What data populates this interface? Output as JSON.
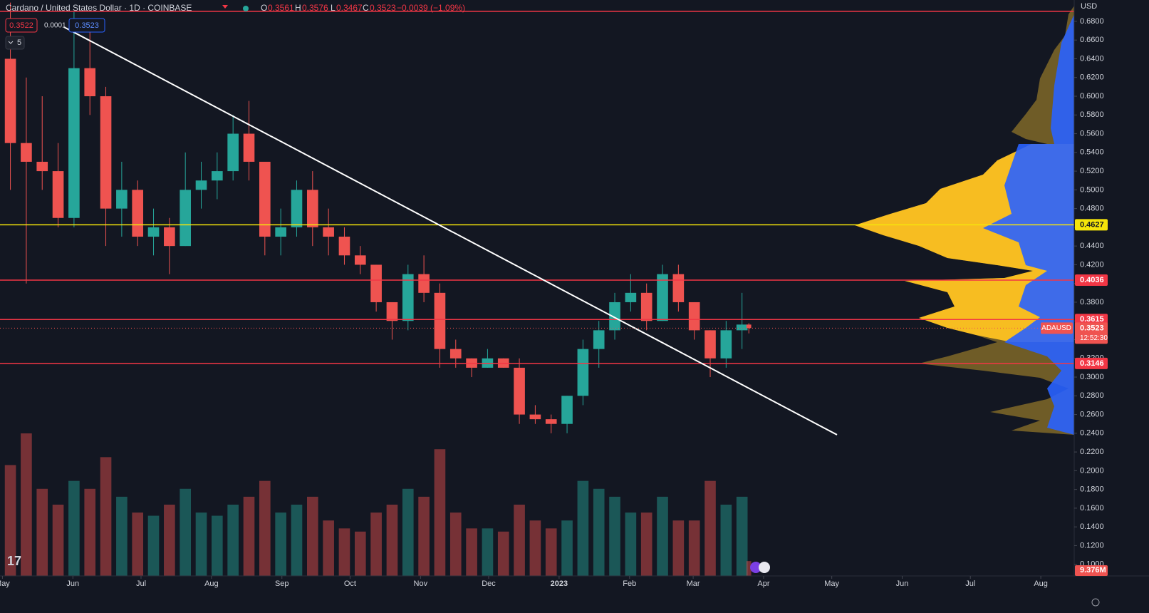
{
  "chart_data": {
    "type": "candlestick",
    "title": "Cardano / United States Dollar · 1D · COINBASE",
    "change": "−0.0039 (−1.09%)",
    "sell": 0.3522,
    "spread": 0.0001,
    "buy": 0.3523,
    "indicators": 5,
    "currency": "USD",
    "symbol": "ADAUSD",
    "countdown": "12:52:30",
    "up_color": "#26a69a",
    "down_color": "#ef5350",
    "x": [
      3.5,
      10.5,
      17.5,
      24.5,
      31.5,
      38.5,
      45.5,
      52.5,
      59.5,
      66.5,
      73.5,
      80.5,
      87.5,
      94.5,
      101.5,
      108.5,
      115.5,
      122.5,
      129.5,
      136.5,
      143.5,
      150.5,
      157.5,
      164.5,
      171.5,
      178.5,
      185.5,
      192.5,
      199.5,
      206.5,
      213.5,
      220.5,
      227.5,
      234.5,
      241.5,
      248.5,
      255.5,
      262.5,
      269.5,
      276.5,
      283.5,
      290.5,
      297.5,
      304.5,
      311.5,
      318.5,
      325.5,
      328.5
    ],
    "open": [
      0.64,
      0.55,
      0.53,
      0.52,
      0.47,
      0.63,
      0.6,
      0.48,
      0.5,
      0.45,
      0.46,
      0.44,
      0.5,
      0.51,
      0.52,
      0.56,
      0.53,
      0.45,
      0.46,
      0.5,
      0.46,
      0.45,
      0.43,
      0.42,
      0.38,
      0.36,
      0.41,
      0.39,
      0.33,
      0.32,
      0.31,
      0.32,
      0.31,
      0.26,
      0.255,
      0.25,
      0.28,
      0.33,
      0.35,
      0.38,
      0.39,
      0.36,
      0.41,
      0.38,
      0.35,
      0.32,
      0.35,
      0.3561
    ],
    "high": [
      0.7,
      0.62,
      0.6,
      0.55,
      0.69,
      0.67,
      0.61,
      0.53,
      0.51,
      0.48,
      0.47,
      0.54,
      0.53,
      0.54,
      0.58,
      0.595,
      0.53,
      0.48,
      0.51,
      0.52,
      0.48,
      0.46,
      0.44,
      0.42,
      0.38,
      0.42,
      0.43,
      0.4,
      0.34,
      0.32,
      0.33,
      0.32,
      0.32,
      0.27,
      0.26,
      0.28,
      0.34,
      0.36,
      0.39,
      0.41,
      0.4,
      0.42,
      0.42,
      0.38,
      0.35,
      0.36,
      0.39,
      0.3576
    ],
    "low": [
      0.5,
      0.4,
      0.5,
      0.46,
      0.46,
      0.58,
      0.44,
      0.45,
      0.44,
      0.43,
      0.41,
      0.44,
      0.48,
      0.49,
      0.51,
      0.51,
      0.43,
      0.43,
      0.45,
      0.44,
      0.43,
      0.42,
      0.41,
      0.37,
      0.34,
      0.35,
      0.38,
      0.31,
      0.31,
      0.3,
      0.31,
      0.31,
      0.25,
      0.25,
      0.24,
      0.24,
      0.27,
      0.31,
      0.34,
      0.37,
      0.35,
      0.36,
      0.37,
      0.34,
      0.3,
      0.31,
      0.33,
      0.3467
    ],
    "close": [
      0.55,
      0.53,
      0.52,
      0.47,
      0.63,
      0.6,
      0.48,
      0.5,
      0.45,
      0.46,
      0.44,
      0.5,
      0.51,
      0.52,
      0.56,
      0.53,
      0.45,
      0.46,
      0.5,
      0.46,
      0.45,
      0.43,
      0.42,
      0.38,
      0.36,
      0.41,
      0.39,
      0.33,
      0.32,
      0.31,
      0.32,
      0.31,
      0.26,
      0.255,
      0.25,
      0.28,
      0.33,
      0.35,
      0.38,
      0.39,
      0.36,
      0.41,
      0.38,
      0.35,
      0.32,
      0.35,
      0.3561,
      0.3523
    ],
    "volume": [
      70,
      90,
      55,
      45,
      60,
      55,
      75,
      50,
      40,
      38,
      45,
      55,
      40,
      38,
      45,
      50,
      60,
      40,
      45,
      50,
      35,
      30,
      28,
      40,
      45,
      55,
      50,
      80,
      40,
      30,
      30,
      28,
      45,
      35,
      30,
      35,
      60,
      55,
      50,
      40,
      40,
      50,
      35,
      35,
      60,
      45,
      50,
      9.376
    ],
    "last_volume_label": "9.376M",
    "xlim": [
      -1.07,
      471.7
    ],
    "xticks": [
      {
        "value": 0,
        "label": "May"
      },
      {
        "value": 31,
        "label": "Jun"
      },
      {
        "value": 61,
        "label": "Jul"
      },
      {
        "value": 92,
        "label": "Aug"
      },
      {
        "value": 123,
        "label": "Sep"
      },
      {
        "value": 153,
        "label": "Oct"
      },
      {
        "value": 184,
        "label": "Nov"
      },
      {
        "value": 214,
        "label": "Dec"
      },
      {
        "value": 245,
        "label": "2023"
      },
      {
        "value": 276,
        "label": "Feb"
      },
      {
        "value": 304,
        "label": "Mar"
      },
      {
        "value": 335,
        "label": "Apr"
      },
      {
        "value": 365,
        "label": "May"
      },
      {
        "value": 396,
        "label": "Jun"
      },
      {
        "value": 426,
        "label": "Jul"
      },
      {
        "value": 457,
        "label": "Aug"
      }
    ],
    "ylim": [
      0.0876,
      0.7028
    ],
    "yticks": [
      {
        "value": 0.1,
        "label": "0.1000"
      },
      {
        "value": 0.12,
        "label": "0.1200"
      },
      {
        "value": 0.14,
        "label": "0.1400"
      },
      {
        "value": 0.16,
        "label": "0.1600"
      },
      {
        "value": 0.18,
        "label": "0.1800"
      },
      {
        "value": 0.2,
        "label": "0.2000"
      },
      {
        "value": 0.22,
        "label": "0.2200"
      },
      {
        "value": 0.24,
        "label": "0.2400"
      },
      {
        "value": 0.26,
        "label": "0.2600"
      },
      {
        "value": 0.28,
        "label": "0.2800"
      },
      {
        "value": 0.3,
        "label": "0.3000"
      },
      {
        "value": 0.32,
        "label": "0.3200"
      },
      {
        "value": 0.34,
        "label": "0.3400"
      },
      {
        "value": 0.36,
        "label": "0.3600"
      },
      {
        "value": 0.38,
        "label": "0.3800"
      },
      {
        "value": 0.4,
        "label": "0.4000"
      },
      {
        "value": 0.42,
        "label": "0.4200"
      },
      {
        "value": 0.44,
        "label": "0.4400"
      },
      {
        "value": 0.46,
        "label": "0.4600"
      },
      {
        "value": 0.48,
        "label": "0.4800"
      },
      {
        "value": 0.5,
        "label": "0.5000"
      },
      {
        "value": 0.52,
        "label": "0.5200"
      },
      {
        "value": 0.54,
        "label": "0.5400"
      },
      {
        "value": 0.56,
        "label": "0.5600"
      },
      {
        "value": 0.58,
        "label": "0.5800"
      },
      {
        "value": 0.6,
        "label": "0.6000"
      },
      {
        "value": 0.62,
        "label": "0.6200"
      },
      {
        "value": 0.64,
        "label": "0.6400"
      },
      {
        "value": 0.66,
        "label": "0.6600"
      },
      {
        "value": 0.68,
        "label": "0.6800"
      }
    ],
    "levels": [
      {
        "value": 0.4627,
        "color": "#f5e50a"
      },
      {
        "value": 0.4036,
        "color": "#f23645"
      },
      {
        "value": 0.3615,
        "color": "#f23645"
      },
      {
        "value": 0.3146,
        "color": "#f23645"
      }
    ],
    "upper_line": {
      "value": 0.6907,
      "color": "#f23645"
    },
    "trendline": {
      "x": [
        27.1,
        367.3
      ],
      "y": [
        0.6739,
        0.2384
      ],
      "color": "#ffffff"
    }
  }
}
